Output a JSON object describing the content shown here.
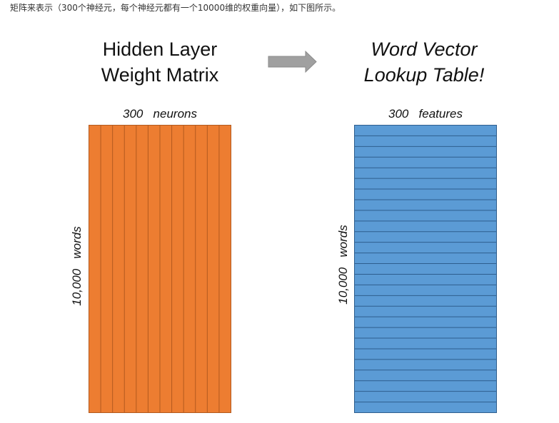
{
  "caption": "矩阵来表示（300个神经元，每个神经元都有一个10000维的权重向量），如下图所示。",
  "left_panel": {
    "title_line1": "Hidden Layer",
    "title_line2": "Weight Matrix",
    "column_label": "300   neurons",
    "row_label": "10,000   words",
    "fill_color": "#ED7D31",
    "line_color": "#B35A1F",
    "stripes": 12
  },
  "right_panel": {
    "title_line1": "Word Vector",
    "title_line2": "Lookup Table!",
    "column_label": "300   features",
    "row_label": "10,000   words",
    "fill_color": "#5B9BD5",
    "line_color": "#2E5E8E",
    "stripes": 27
  },
  "arrow": {
    "icon": "right-arrow-icon",
    "color": "#A0A0A0"
  }
}
